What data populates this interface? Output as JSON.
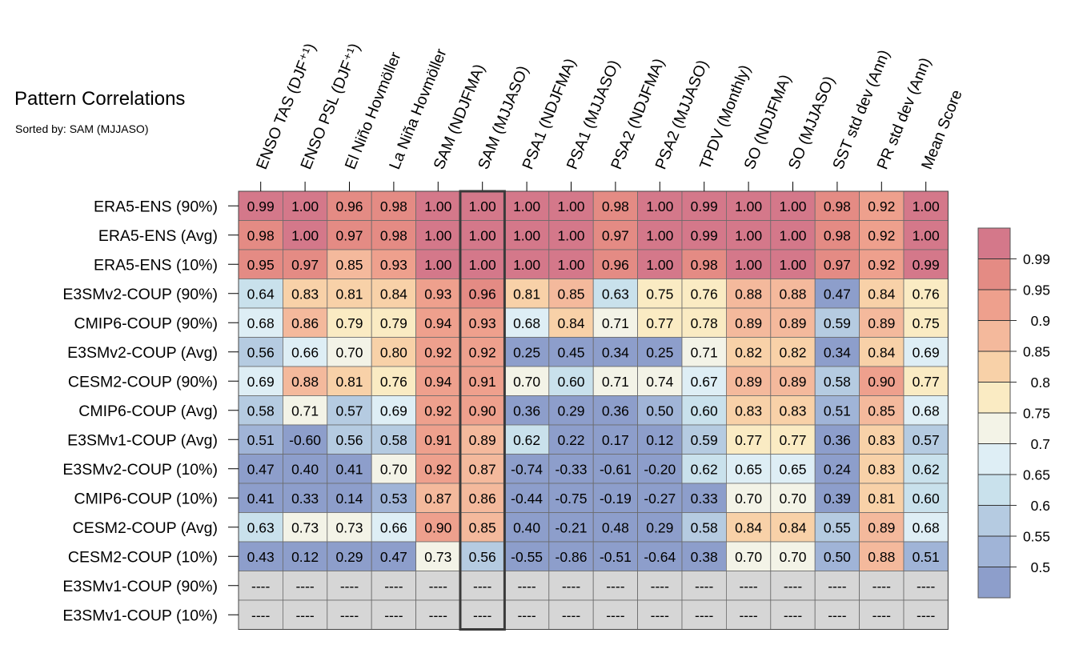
{
  "header": {
    "title": "Pattern Correlations",
    "subtitle": "Sorted by: SAM (MJJASO)"
  },
  "chart_data": {
    "type": "heatmap",
    "columns": [
      "ENSO TAS (DJF⁺¹)",
      "ENSO PSL (DJF⁺¹)",
      "El Niño Hovmöller",
      "La Niña Hovmöller",
      "SAM (NDJFMA)",
      "SAM (MJJASO)",
      "PSA1 (NDJFMA)",
      "PSA1 (MJJASO)",
      "PSA2 (NDJFMA)",
      "PSA2 (MJJASO)",
      "TPDV (Monthly)",
      "SO (NDJFMA)",
      "SO (MJJASO)",
      "SST std dev (Ann)",
      "PR std dev (Ann)",
      "Mean Score"
    ],
    "rows": [
      "ERA5-ENS (90%)",
      "ERA5-ENS (Avg)",
      "ERA5-ENS (10%)",
      "E3SMv2-COUP (90%)",
      "CMIP6-COUP (90%)",
      "E3SMv2-COUP (Avg)",
      "CESM2-COUP (90%)",
      "CMIP6-COUP (Avg)",
      "E3SMv1-COUP (Avg)",
      "E3SMv2-COUP (10%)",
      "CMIP6-COUP (10%)",
      "CESM2-COUP (Avg)",
      "CESM2-COUP (10%)",
      "E3SMv1-COUP (90%)",
      "E3SMv1-COUP (10%)"
    ],
    "values": [
      [
        "0.99",
        "1.00",
        "0.96",
        "0.98",
        "1.00",
        "1.00",
        "1.00",
        "1.00",
        "0.98",
        "1.00",
        "0.99",
        "1.00",
        "1.00",
        "0.98",
        "0.92",
        "1.00"
      ],
      [
        "0.98",
        "1.00",
        "0.97",
        "0.98",
        "1.00",
        "1.00",
        "1.00",
        "1.00",
        "0.97",
        "1.00",
        "0.99",
        "1.00",
        "1.00",
        "0.98",
        "0.92",
        "1.00"
      ],
      [
        "0.95",
        "0.97",
        "0.85",
        "0.93",
        "1.00",
        "1.00",
        "1.00",
        "1.00",
        "0.96",
        "1.00",
        "0.98",
        "1.00",
        "1.00",
        "0.97",
        "0.92",
        "0.99"
      ],
      [
        "0.64",
        "0.83",
        "0.81",
        "0.84",
        "0.93",
        "0.96",
        "0.81",
        "0.85",
        "0.63",
        "0.75",
        "0.76",
        "0.88",
        "0.88",
        "0.47",
        "0.84",
        "0.76"
      ],
      [
        "0.68",
        "0.86",
        "0.79",
        "0.79",
        "0.94",
        "0.93",
        "0.68",
        "0.84",
        "0.71",
        "0.77",
        "0.78",
        "0.89",
        "0.89",
        "0.59",
        "0.89",
        "0.75"
      ],
      [
        "0.56",
        "0.66",
        "0.70",
        "0.80",
        "0.92",
        "0.92",
        "0.25",
        "0.45",
        "0.34",
        "0.25",
        "0.71",
        "0.82",
        "0.82",
        "0.34",
        "0.84",
        "0.69"
      ],
      [
        "0.69",
        "0.88",
        "0.81",
        "0.76",
        "0.94",
        "0.91",
        "0.70",
        "0.60",
        "0.71",
        "0.74",
        "0.67",
        "0.89",
        "0.89",
        "0.58",
        "0.90",
        "0.77"
      ],
      [
        "0.58",
        "0.71",
        "0.57",
        "0.69",
        "0.92",
        "0.90",
        "0.36",
        "0.29",
        "0.36",
        "0.50",
        "0.60",
        "0.83",
        "0.83",
        "0.51",
        "0.85",
        "0.68"
      ],
      [
        "0.51",
        "-0.60",
        "0.56",
        "0.58",
        "0.91",
        "0.89",
        "0.62",
        "0.22",
        "0.17",
        "0.12",
        "0.59",
        "0.77",
        "0.77",
        "0.36",
        "0.83",
        "0.57"
      ],
      [
        "0.47",
        "0.40",
        "0.41",
        "0.70",
        "0.92",
        "0.87",
        "-0.74",
        "-0.33",
        "-0.61",
        "-0.20",
        "0.62",
        "0.65",
        "0.65",
        "0.24",
        "0.83",
        "0.62"
      ],
      [
        "0.41",
        "0.33",
        "0.14",
        "0.53",
        "0.87",
        "0.86",
        "-0.44",
        "-0.75",
        "-0.19",
        "-0.27",
        "0.33",
        "0.70",
        "0.70",
        "0.39",
        "0.81",
        "0.60"
      ],
      [
        "0.63",
        "0.73",
        "0.73",
        "0.66",
        "0.90",
        "0.85",
        "0.40",
        "-0.21",
        "0.48",
        "0.29",
        "0.58",
        "0.84",
        "0.84",
        "0.55",
        "0.89",
        "0.68"
      ],
      [
        "0.43",
        "0.12",
        "0.29",
        "0.47",
        "0.73",
        "0.56",
        "-0.55",
        "-0.86",
        "-0.51",
        "-0.64",
        "0.38",
        "0.70",
        "0.70",
        "0.50",
        "0.88",
        "0.51"
      ],
      [
        "----",
        "----",
        "----",
        "----",
        "----",
        "----",
        "----",
        "----",
        "----",
        "----",
        "----",
        "----",
        "----",
        "----",
        "----",
        "----"
      ],
      [
        "----",
        "----",
        "----",
        "----",
        "----",
        "----",
        "----",
        "----",
        "----",
        "----",
        "----",
        "----",
        "----",
        "----",
        "----",
        "----"
      ]
    ],
    "highlighted_column": "SAM (MJJASO)",
    "missing_color": "#d6d6d6",
    "colorbar": {
      "labels": [
        "0.99",
        "0.95",
        "0.9",
        "0.85",
        "0.8",
        "0.75",
        "0.7",
        "0.65",
        "0.6",
        "0.55",
        "0.5"
      ],
      "thresholds": [
        0.99,
        0.95,
        0.9,
        0.85,
        0.8,
        0.75,
        0.7,
        0.65,
        0.6,
        0.55,
        0.5
      ],
      "colors": [
        "#d4788a",
        "#e48b84",
        "#eea08d",
        "#f4b99c",
        "#f8d1a8",
        "#faebc3",
        "#f3f3e7",
        "#deeef5",
        "#c9e1ec",
        "#b5cbe1",
        "#a0b4d7",
        "#8d9ecb"
      ]
    }
  }
}
